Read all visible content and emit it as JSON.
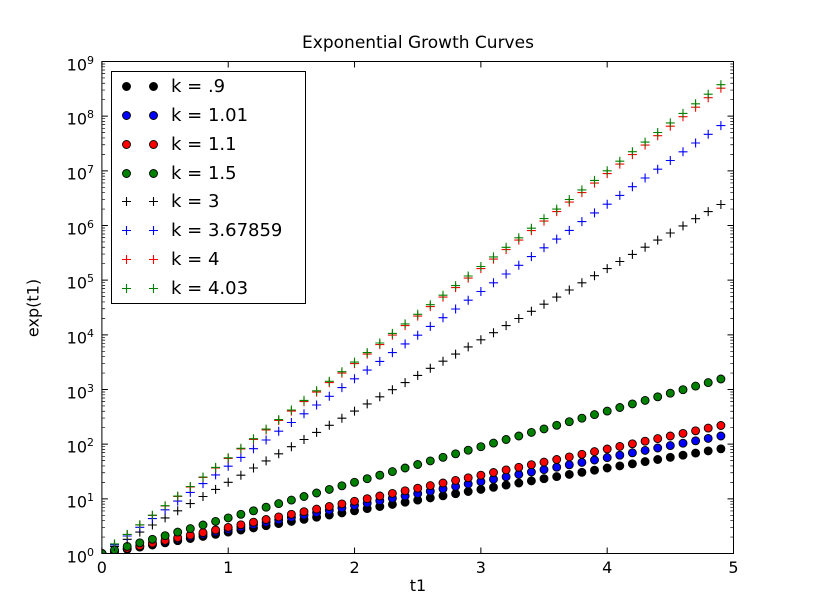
{
  "figure": {
    "background": "#ffffff",
    "frame_color": "#000000"
  },
  "chart_data": {
    "type": "scatter",
    "title": "Exponential Growth Curves",
    "xlabel": "t1",
    "ylabel": "exp(t1)",
    "grid": false,
    "y_scale": "log",
    "xlim": [
      0,
      5
    ],
    "ylim_exponents": [
      0,
      9
    ],
    "x_ticks": [
      0,
      1,
      2,
      3,
      4,
      5
    ],
    "y_tick_base": "10",
    "y_tick_exponents": [
      0,
      1,
      2,
      3,
      4,
      5,
      6,
      7,
      8,
      9
    ],
    "x_start": 0,
    "x_step": 0.1,
    "x_count": 50,
    "formula": "y = exp(k * t1)",
    "legend_position": "upper-left",
    "legend_numpoints": 2,
    "series": [
      {
        "label": "k = .9",
        "k": 0.9,
        "marker": "circle",
        "color": "#000000"
      },
      {
        "label": "k = 1.01",
        "k": 1.01,
        "marker": "circle",
        "color": "#0000ff"
      },
      {
        "label": "k = 1.1",
        "k": 1.1,
        "marker": "circle",
        "color": "#ff0000"
      },
      {
        "label": "k = 1.5",
        "k": 1.5,
        "marker": "circle",
        "color": "#008000"
      },
      {
        "label": "k = 3",
        "k": 3,
        "marker": "plus",
        "color": "#000000"
      },
      {
        "label": "k = 3.67859",
        "k": 3.67859,
        "marker": "plus",
        "color": "#0000ff"
      },
      {
        "label": "k = 4",
        "k": 4,
        "marker": "plus",
        "color": "#ff0000"
      },
      {
        "label": "k = 4.03",
        "k": 4.03,
        "marker": "plus",
        "color": "#008000"
      }
    ]
  }
}
